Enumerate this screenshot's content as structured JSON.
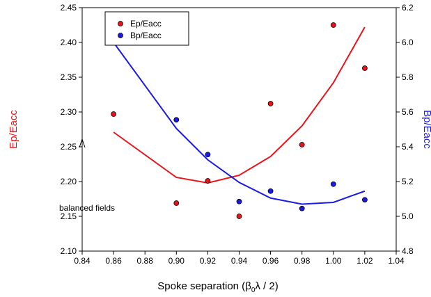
{
  "chart_data": {
    "type": "scatter",
    "xlabel_main": "Spoke separation (",
    "xlabel_beta": "β",
    "xlabel_sub": "0",
    "xlabel_rest": "λ / 2)",
    "ylabel_left": "Ep/Eacc",
    "ylabel_right": "Bp/Eacc",
    "xlim": [
      0.84,
      1.04
    ],
    "ylim_left": [
      2.1,
      2.45
    ],
    "ylim_right": [
      4.8,
      6.2
    ],
    "x_ticks": [
      "0.84",
      "0.86",
      "0.88",
      "0.90",
      "0.92",
      "0.94",
      "0.96",
      "0.98",
      "1.00",
      "1.02",
      "1.04"
    ],
    "y_left_ticks": [
      "2.10",
      "2.15",
      "2.20",
      "2.25",
      "2.30",
      "2.35",
      "2.40",
      "2.45"
    ],
    "y_right_ticks": [
      "4.8",
      "5.0",
      "5.2",
      "5.4",
      "5.6",
      "5.8",
      "6.0",
      "6.2"
    ],
    "legend": {
      "placement": "top-left",
      "entries": [
        "Ep/Eacc",
        "Bp/Eacc"
      ]
    },
    "series": [
      {
        "name": "Ep/Eacc",
        "axis": "left",
        "color": "#e8141b",
        "points": [
          {
            "x": 0.86,
            "y": 2.297
          },
          {
            "x": 0.9,
            "y": 2.169
          },
          {
            "x": 0.92,
            "y": 2.201
          },
          {
            "x": 0.94,
            "y": 2.15
          },
          {
            "x": 0.96,
            "y": 2.312
          },
          {
            "x": 0.98,
            "y": 2.253
          },
          {
            "x": 1.0,
            "y": 2.425
          },
          {
            "x": 1.02,
            "y": 2.363
          }
        ],
        "fit": [
          {
            "x": 0.86,
            "y": 2.271
          },
          {
            "x": 0.9,
            "y": 2.206
          },
          {
            "x": 0.92,
            "y": 2.198
          },
          {
            "x": 0.94,
            "y": 2.209
          },
          {
            "x": 0.96,
            "y": 2.236
          },
          {
            "x": 0.98,
            "y": 2.28
          },
          {
            "x": 1.0,
            "y": 2.342
          },
          {
            "x": 1.02,
            "y": 2.422
          }
        ]
      },
      {
        "name": "Bp/Eacc",
        "axis": "right",
        "color": "#1a1ae6",
        "points": [
          {
            "x": 0.86,
            "y": 6.0
          },
          {
            "x": 0.9,
            "y": 5.555
          },
          {
            "x": 0.92,
            "y": 5.355
          },
          {
            "x": 0.94,
            "y": 5.085
          },
          {
            "x": 0.96,
            "y": 5.145
          },
          {
            "x": 0.98,
            "y": 5.045
          },
          {
            "x": 1.0,
            "y": 5.185
          },
          {
            "x": 1.02,
            "y": 5.095
          }
        ],
        "fit": [
          {
            "x": 0.86,
            "y": 6.0
          },
          {
            "x": 0.9,
            "y": 5.505
          },
          {
            "x": 0.92,
            "y": 5.325
          },
          {
            "x": 0.94,
            "y": 5.195
          },
          {
            "x": 0.96,
            "y": 5.105
          },
          {
            "x": 0.98,
            "y": 5.07
          },
          {
            "x": 1.0,
            "y": 5.08
          },
          {
            "x": 1.02,
            "y": 5.145
          }
        ]
      }
    ],
    "annotation": {
      "text": "balanced fields",
      "arrow_to": {
        "x": 0.86,
        "y": 2.26
      }
    }
  }
}
